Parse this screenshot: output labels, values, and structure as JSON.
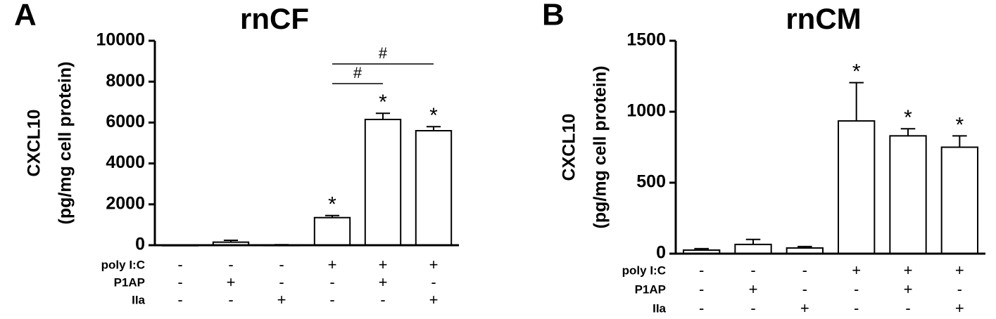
{
  "chart_data": [
    {
      "type": "bar",
      "panel": "A",
      "title": "rnCF",
      "ylabel": [
        "CXCL10",
        "(pg/mg cell protein)"
      ],
      "categories": [
        null,
        null,
        null,
        null,
        null,
        null
      ],
      "values": [
        10,
        150,
        15,
        1350,
        6150,
        5600
      ],
      "errors": [
        5,
        90,
        10,
        100,
        300,
        200
      ],
      "value_labels": [
        null,
        null,
        null,
        "*",
        "*",
        "*"
      ],
      "brackets": [
        {
          "from": 3,
          "to": 4,
          "label": "#"
        },
        {
          "from": 3,
          "to": 5,
          "label": "#"
        }
      ],
      "conditions": [
        {
          "label": "poly I:C",
          "values": [
            "-",
            "-",
            "-",
            "+",
            "+",
            "+"
          ]
        },
        {
          "label": "P1AP",
          "values": [
            "-",
            "+",
            "-",
            "-",
            "+",
            "-"
          ]
        },
        {
          "label": "IIa",
          "values": [
            "-",
            "-",
            "+",
            "-",
            "-",
            "+"
          ]
        }
      ],
      "color": "#ffffff",
      "edge_color": "#000000",
      "ylim": [
        0,
        10000
      ],
      "yticks": [
        0,
        2000,
        4000,
        6000,
        8000,
        10000
      ],
      "grid": false
    },
    {
      "type": "bar",
      "panel": "B",
      "title": "rnCM",
      "ylabel": [
        "CXCL10",
        "(pg/mg cell protein)"
      ],
      "categories": [
        null,
        null,
        null,
        null,
        null,
        null
      ],
      "values": [
        25,
        65,
        40,
        935,
        830,
        750
      ],
      "errors": [
        10,
        35,
        10,
        270,
        50,
        80
      ],
      "value_labels": [
        null,
        null,
        null,
        "*",
        "*",
        "*"
      ],
      "brackets": [],
      "conditions": [
        {
          "label": "poly I:C",
          "values": [
            "-",
            "-",
            "-",
            "+",
            "+",
            "+"
          ]
        },
        {
          "label": "P1AP",
          "values": [
            "-",
            "+",
            "-",
            "-",
            "+",
            "-"
          ]
        },
        {
          "label": "IIa",
          "values": [
            "-",
            "-",
            "+",
            "-",
            "-",
            "+"
          ]
        }
      ],
      "color": "#ffffff",
      "edge_color": "#000000",
      "ylim": [
        0,
        1500
      ],
      "yticks": [
        0,
        500,
        1000,
        1500
      ],
      "grid": false
    }
  ]
}
